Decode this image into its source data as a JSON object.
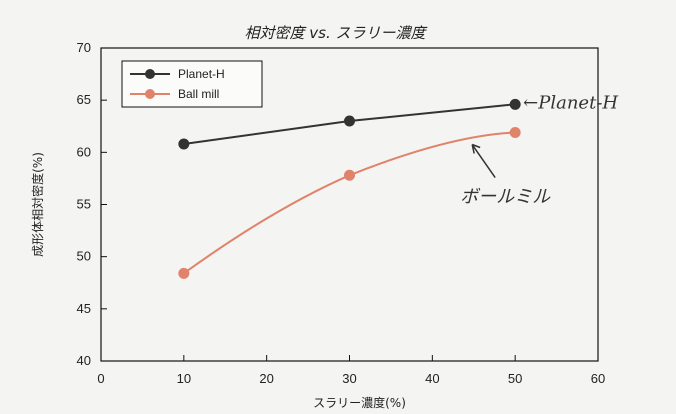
{
  "chart_data": {
    "type": "line",
    "title": "相対密度 vs. スラリー濃度",
    "xlabel": "スラリー濃度(%)",
    "ylabel": "成形体相対密度(%)",
    "xlim": [
      0,
      60
    ],
    "ylim": [
      40,
      70
    ],
    "xticks": [
      "0",
      "10",
      "20",
      "30",
      "40",
      "50",
      "60"
    ],
    "yticks": [
      "40",
      "45",
      "50",
      "55",
      "60",
      "65",
      "70"
    ],
    "grid": false,
    "legend_position": "top-left",
    "series": [
      {
        "name": "Planet-H",
        "color": "#333333",
        "x": [
          10,
          30,
          50
        ],
        "y": [
          60.8,
          63.0,
          64.6
        ]
      },
      {
        "name": "Ball mill",
        "color": "#e0836a",
        "x": [
          10,
          30,
          50
        ],
        "y": [
          48.4,
          57.8,
          61.9
        ]
      }
    ],
    "annotations": [
      {
        "text": "←Planet-H",
        "series": "Planet-H"
      },
      {
        "text": "ボールミル",
        "series": "Ball mill"
      }
    ]
  }
}
